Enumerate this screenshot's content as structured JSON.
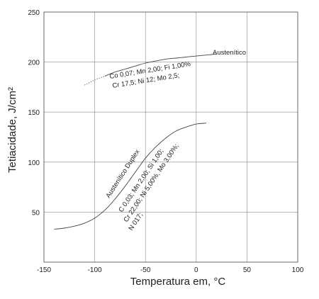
{
  "chart_data": {
    "type": "line",
    "xlabel": "Temperatura em, °C",
    "ylabel": "Tetiacidade, J/cm²",
    "xlim": [
      -150,
      100
    ],
    "ylim": [
      0,
      250
    ],
    "x_ticks": [
      "-150",
      "-100",
      "-50",
      "0",
      "50",
      "100"
    ],
    "y_ticks": [
      "50",
      "100",
      "150",
      "200",
      "250"
    ],
    "grid": true,
    "series": [
      {
        "name": "Austenítico",
        "style": "solid with dotted start",
        "x": [
          -110,
          -100,
          -90,
          -80,
          -70,
          -60,
          -50,
          -40,
          -30,
          -20,
          -10,
          0,
          10,
          20
        ],
        "y": [
          177,
          182,
          186,
          190,
          193,
          196,
          199,
          201,
          203,
          204,
          205,
          206,
          207,
          208
        ]
      },
      {
        "name": "Austenítico Duplex",
        "style": "solid",
        "x": [
          -140,
          -130,
          -120,
          -110,
          -100,
          -90,
          -80,
          -70,
          -60,
          -50,
          -40,
          -30,
          -20,
          -10,
          0,
          10
        ],
        "y": [
          33,
          34,
          36,
          39,
          44,
          52,
          63,
          76,
          90,
          104,
          115,
          124,
          131,
          135,
          138,
          139
        ]
      }
    ],
    "annotations": [
      {
        "id": "aust_comp1",
        "text": "Co 0,07; Mn 2,00; Fi 1,00%"
      },
      {
        "id": "aust_comp2",
        "text": "Cr 17,5; Ni 12; Mo 2,5;"
      },
      {
        "id": "duplex_comp1",
        "text": "C 0,03; Mn 2,00; Si 1,00;"
      },
      {
        "id": "duplex_comp2",
        "text": "Cr 22,00; Ni 5,00%, Mo 3,00%;"
      },
      {
        "id": "duplex_comp3",
        "text": "N 017;"
      }
    ]
  }
}
